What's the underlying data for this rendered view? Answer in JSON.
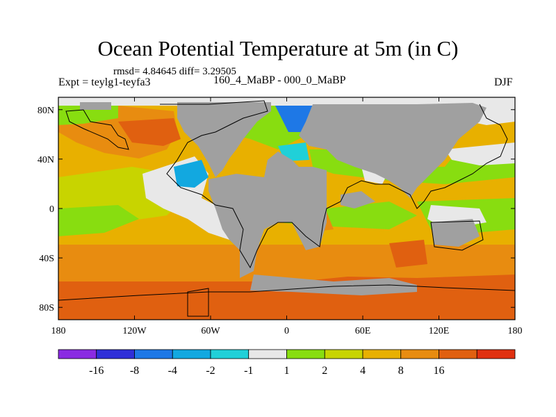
{
  "title": "Ocean Potential Temperature at 5m (in C)",
  "stats": "rmsd= 4.84645 diff= 3.29505",
  "expt": "Expt = teylg1-teyfa3",
  "subtitle": "160_4_MaBP - 000_0_MaBP",
  "season": "DJF",
  "map": {
    "lon_range": [
      -180,
      180
    ],
    "lat_range": [
      -90,
      90
    ],
    "x_ticks": [
      {
        "value": -180,
        "label": "180"
      },
      {
        "value": -120,
        "label": "120W"
      },
      {
        "value": -60,
        "label": "60W"
      },
      {
        "value": 0,
        "label": "0"
      },
      {
        "value": 60,
        "label": "60E"
      },
      {
        "value": 120,
        "label": "120E"
      },
      {
        "value": 180,
        "label": "180"
      }
    ],
    "y_ticks": [
      {
        "value": 80,
        "label": "80N"
      },
      {
        "value": 40,
        "label": "40N"
      },
      {
        "value": 0,
        "label": "0"
      },
      {
        "value": -40,
        "label": "40S"
      },
      {
        "value": -80,
        "label": "80S"
      }
    ],
    "land_color": "#a0a0a0"
  },
  "colorbar": {
    "colors": [
      "#8a2be2",
      "#2f2fd8",
      "#1e78e6",
      "#12a8e0",
      "#20d0d8",
      "#e8e8e8",
      "#88dd10",
      "#c8d400",
      "#e8b000",
      "#e88c10",
      "#e06010",
      "#e03010"
    ],
    "labels": [
      "-16",
      "-8",
      "-4",
      "-2",
      "-1",
      "1",
      "2",
      "4",
      "8",
      "16"
    ]
  }
}
